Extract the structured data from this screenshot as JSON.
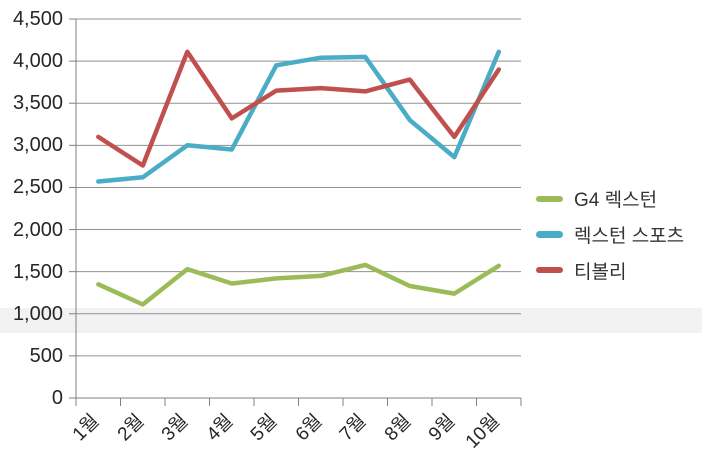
{
  "chart_data": {
    "type": "line",
    "title": "",
    "categories": [
      "1월",
      "2월",
      "3월",
      "4월",
      "5월",
      "6월",
      "7월",
      "8월",
      "9월",
      "10월"
    ],
    "series": [
      {
        "name": "G4 렉스턴",
        "color": "#9bbb59",
        "values": [
          1350,
          1110,
          1530,
          1360,
          1420,
          1450,
          1580,
          1330,
          1240,
          1570
        ]
      },
      {
        "name": "렉스턴 스포츠",
        "color": "#4bacc6",
        "values": [
          2570,
          2620,
          3000,
          2950,
          3950,
          4040,
          4050,
          3300,
          2860,
          4110
        ]
      },
      {
        "name": "티볼리",
        "color": "#c0504d",
        "values": [
          3100,
          2760,
          4110,
          3320,
          3650,
          3680,
          3640,
          3780,
          3100,
          3900
        ]
      }
    ],
    "ylim": [
      0,
      4500
    ],
    "ytick_step": 500,
    "ytick_labels": [
      "0",
      "500",
      "1,000",
      "1,500",
      "2,000",
      "2,500",
      "3,000",
      "3,500",
      "4,000",
      "4,500"
    ],
    "grid": "horizontal-gridlines",
    "legend_position": "right"
  },
  "colors": {
    "gridline": "#919191",
    "axis": "#808080",
    "label_text": "#262626",
    "row_band": "#f2f2f2",
    "background": "#ffffff"
  }
}
